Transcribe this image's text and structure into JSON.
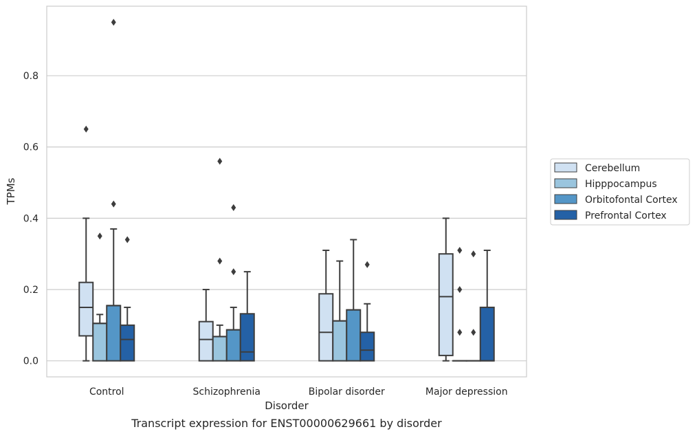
{
  "caption": "Transcript expression for ENST00000629661 by disorder",
  "chart_data": {
    "type": "box",
    "xlabel": "Disorder",
    "ylabel": "TPMs",
    "ylim": [
      -0.045,
      0.995
    ],
    "yticks": [
      0.0,
      0.2,
      0.4,
      0.6,
      0.8
    ],
    "ytick_labels": [
      "0.0",
      "0.2",
      "0.4",
      "0.6",
      "0.8"
    ],
    "grid": "horizontal",
    "legend_position": "right",
    "categories": [
      "Control",
      "Schizophrenia",
      "Bipolar disorder",
      "Major depression"
    ],
    "series": [
      {
        "name": "Cerebellum",
        "color": "#d0e1f2",
        "boxes": [
          {
            "min": 0.0,
            "q1": 0.07,
            "median": 0.15,
            "q3": 0.22,
            "max": 0.4,
            "fliers": [
              0.65
            ]
          },
          {
            "min": 0.0,
            "q1": 0.0,
            "median": 0.06,
            "q3": 0.11,
            "max": 0.2,
            "fliers": []
          },
          {
            "min": 0.0,
            "q1": 0.0,
            "median": 0.08,
            "q3": 0.188,
            "max": 0.31,
            "fliers": []
          },
          {
            "min": 0.0,
            "q1": 0.015,
            "median": 0.18,
            "q3": 0.3,
            "max": 0.4,
            "fliers": []
          }
        ]
      },
      {
        "name": "Hipppocampus",
        "color": "#9ac5de",
        "boxes": [
          {
            "min": 0.0,
            "q1": 0.0,
            "median": 0.105,
            "q3": 0.105,
            "max": 0.13,
            "fliers": [
              0.35
            ]
          },
          {
            "min": 0.0,
            "q1": 0.0,
            "median": 0.068,
            "q3": 0.068,
            "max": 0.1,
            "fliers": [
              0.56,
              0.28
            ]
          },
          {
            "min": 0.0,
            "q1": 0.0,
            "median": 0.112,
            "q3": 0.112,
            "max": 0.28,
            "fliers": []
          },
          {
            "min": 0.0,
            "q1": 0.0,
            "median": 0.0,
            "q3": 0.0,
            "max": 0.0,
            "fliers": [
              0.31,
              0.2,
              0.08
            ]
          }
        ]
      },
      {
        "name": "Orbitofontal Cortex",
        "color": "#5496c7",
        "boxes": [
          {
            "min": 0.0,
            "q1": 0.0,
            "median": 0.155,
            "q3": 0.155,
            "max": 0.37,
            "fliers": [
              0.95,
              0.44
            ]
          },
          {
            "min": 0.0,
            "q1": 0.0,
            "median": 0.087,
            "q3": 0.087,
            "max": 0.15,
            "fliers": [
              0.43,
              0.25
            ]
          },
          {
            "min": 0.0,
            "q1": 0.0,
            "median": 0.143,
            "q3": 0.143,
            "max": 0.34,
            "fliers": []
          },
          {
            "min": 0.0,
            "q1": 0.0,
            "median": 0.0,
            "q3": 0.0,
            "max": 0.0,
            "fliers": [
              0.3,
              0.08
            ]
          }
        ]
      },
      {
        "name": "Prefrontal Cortex",
        "color": "#2461a6",
        "boxes": [
          {
            "min": 0.0,
            "q1": 0.0,
            "median": 0.06,
            "q3": 0.1,
            "max": 0.15,
            "fliers": [
              0.34
            ]
          },
          {
            "min": 0.0,
            "q1": 0.0,
            "median": 0.025,
            "q3": 0.132,
            "max": 0.25,
            "fliers": []
          },
          {
            "min": 0.0,
            "q1": 0.0,
            "median": 0.03,
            "q3": 0.08,
            "max": 0.16,
            "fliers": [
              0.27
            ]
          },
          {
            "min": 0.0,
            "q1": 0.0,
            "median": 0.0,
            "q3": 0.15,
            "max": 0.31,
            "fliers": []
          }
        ]
      }
    ]
  }
}
